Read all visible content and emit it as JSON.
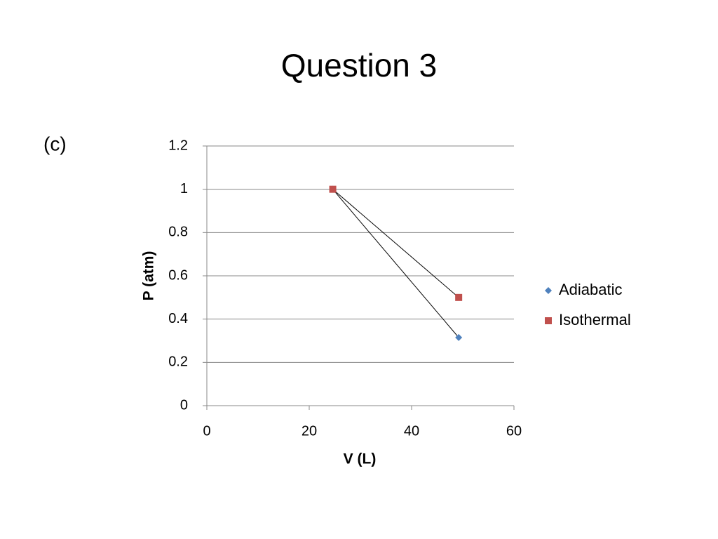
{
  "chart_data": {
    "type": "scatter",
    "title": "Question 3",
    "annotations": [
      "(c)"
    ],
    "x_label": "V (L)",
    "y_label": "P (atm)",
    "series": [
      {
        "name": "Adiabatic",
        "color": "#4f81bd",
        "marker": "diamond",
        "x": [
          24.6,
          49.2
        ],
        "values": [
          1,
          0.315
        ]
      },
      {
        "name": "Isothermal",
        "color": "#c0504d",
        "marker": "square",
        "x": [
          24.6,
          49.2
        ],
        "values": [
          1,
          0.5
        ]
      }
    ],
    "line_color": "#000000",
    "xlim": [
      0,
      60
    ],
    "xticks": [
      0,
      20,
      40,
      60
    ],
    "ylim": [
      0,
      1.2
    ],
    "yticks": [
      0,
      0.2,
      0.4,
      0.6,
      0.8,
      1,
      1.2
    ],
    "grid": true,
    "legend": "right"
  }
}
